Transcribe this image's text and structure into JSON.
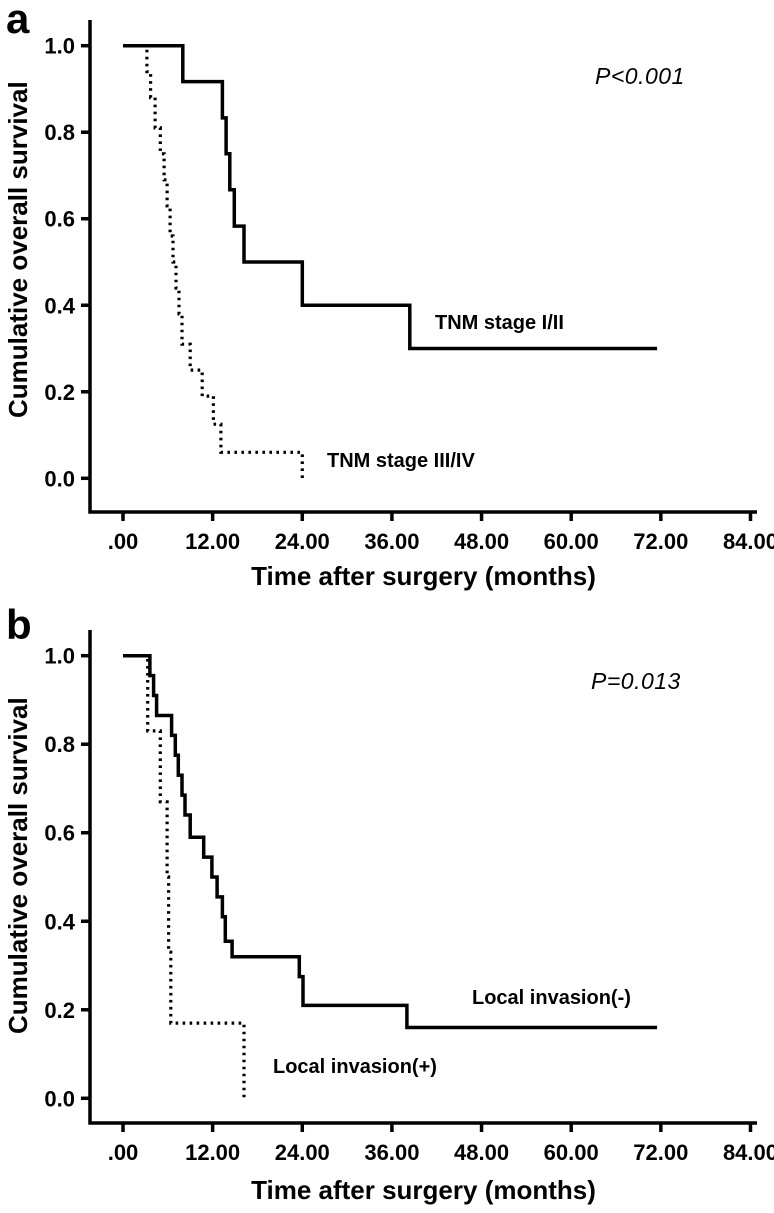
{
  "figure": {
    "background": "#ffffff",
    "ink": "#000000",
    "type": "kaplan-meier-survival-figure"
  },
  "chart_data": [
    {
      "type": "line",
      "subtype": "step-survival",
      "panel_label": "a",
      "xlabel": "Time after surgery (months)",
      "ylabel": "Cumulative overall survival",
      "xlim": [
        0,
        84
      ],
      "ylim": [
        0,
        1
      ],
      "grid": false,
      "legend_position": "inline-labels",
      "annotation": {
        "text": "P<0.001"
      },
      "x_ticks": {
        "values": [
          0,
          12,
          24,
          36,
          48,
          60,
          72,
          84
        ],
        "labels": [
          ".00",
          "12.00",
          "24.00",
          "36.00",
          "48.00",
          "60.00",
          "72.00",
          "84.00"
        ]
      },
      "y_ticks": {
        "values": [
          1.0,
          0.8,
          0.6,
          0.4,
          0.2,
          0.0
        ],
        "labels": [
          "1.0",
          "0.8",
          "0.6",
          "0.4",
          "0.2",
          "0.0"
        ]
      },
      "series": [
        {
          "name": "TNM stage I/II",
          "label": "TNM stage I/II",
          "style": "solid",
          "points": [
            [
              0,
              1.0
            ],
            [
              8,
              1.0
            ],
            [
              8,
              0.917
            ],
            [
              13.3,
              0.917
            ],
            [
              13.3,
              0.833
            ],
            [
              13.8,
              0.833
            ],
            [
              13.8,
              0.75
            ],
            [
              14.3,
              0.75
            ],
            [
              14.3,
              0.667
            ],
            [
              14.9,
              0.667
            ],
            [
              14.9,
              0.583
            ],
            [
              16.2,
              0.583
            ],
            [
              16.2,
              0.5
            ],
            [
              24,
              0.5
            ],
            [
              24,
              0.4
            ],
            [
              38.4,
              0.4
            ],
            [
              38.4,
              0.3
            ],
            [
              71.5,
              0.3
            ]
          ]
        },
        {
          "name": "TNM stage III/IV",
          "label": "TNM stage III/IV",
          "style": "dotted",
          "points": [
            [
              0,
              1.0
            ],
            [
              3.2,
              1.0
            ],
            [
              3.2,
              0.94
            ],
            [
              3.7,
              0.94
            ],
            [
              3.7,
              0.88
            ],
            [
              4.3,
              0.88
            ],
            [
              4.3,
              0.81
            ],
            [
              5.0,
              0.81
            ],
            [
              5.0,
              0.75
            ],
            [
              5.5,
              0.75
            ],
            [
              5.5,
              0.69
            ],
            [
              5.9,
              0.69
            ],
            [
              5.9,
              0.63
            ],
            [
              6.3,
              0.63
            ],
            [
              6.3,
              0.56
            ],
            [
              6.7,
              0.56
            ],
            [
              6.7,
              0.5
            ],
            [
              7.1,
              0.5
            ],
            [
              7.1,
              0.44
            ],
            [
              7.5,
              0.44
            ],
            [
              7.5,
              0.38
            ],
            [
              7.9,
              0.38
            ],
            [
              7.9,
              0.31
            ],
            [
              9.0,
              0.31
            ],
            [
              9.0,
              0.25
            ],
            [
              10.6,
              0.25
            ],
            [
              10.6,
              0.19
            ],
            [
              12.1,
              0.19
            ],
            [
              12.1,
              0.125
            ],
            [
              13.1,
              0.125
            ],
            [
              13.1,
              0.06
            ],
            [
              24,
              0.06
            ],
            [
              24,
              0.0
            ]
          ]
        }
      ]
    },
    {
      "type": "line",
      "subtype": "step-survival",
      "panel_label": "b",
      "xlabel": "Time after surgery (months)",
      "ylabel": "Cumulative overall survival",
      "xlim": [
        0,
        84
      ],
      "ylim": [
        0,
        1
      ],
      "grid": false,
      "legend_position": "inline-labels",
      "annotation": {
        "text": "P=0.013"
      },
      "x_ticks": {
        "values": [
          0,
          12,
          24,
          36,
          48,
          60,
          72,
          84
        ],
        "labels": [
          ".00",
          "12.00",
          "24.00",
          "36.00",
          "48.00",
          "60.00",
          "72.00",
          "84.00"
        ]
      },
      "y_ticks": {
        "values": [
          1.0,
          0.8,
          0.6,
          0.4,
          0.2,
          0.0
        ],
        "labels": [
          "1.0",
          "0.8",
          "0.6",
          "0.4",
          "0.2",
          "0.0"
        ]
      },
      "series": [
        {
          "name": "Local invasion(-)",
          "label": "Local invasion(-)",
          "style": "solid",
          "points": [
            [
              0,
              1.0
            ],
            [
              3.6,
              1.0
            ],
            [
              3.6,
              0.955
            ],
            [
              4.1,
              0.955
            ],
            [
              4.1,
              0.91
            ],
            [
              4.5,
              0.91
            ],
            [
              4.5,
              0.865
            ],
            [
              6.5,
              0.865
            ],
            [
              6.5,
              0.82
            ],
            [
              7.0,
              0.82
            ],
            [
              7.0,
              0.775
            ],
            [
              7.4,
              0.775
            ],
            [
              7.4,
              0.73
            ],
            [
              7.9,
              0.73
            ],
            [
              7.9,
              0.685
            ],
            [
              8.3,
              0.685
            ],
            [
              8.3,
              0.64
            ],
            [
              9.0,
              0.64
            ],
            [
              9.0,
              0.59
            ],
            [
              10.8,
              0.59
            ],
            [
              10.8,
              0.545
            ],
            [
              11.9,
              0.545
            ],
            [
              11.9,
              0.5
            ],
            [
              12.6,
              0.5
            ],
            [
              12.6,
              0.455
            ],
            [
              13.3,
              0.455
            ],
            [
              13.3,
              0.41
            ],
            [
              13.7,
              0.41
            ],
            [
              13.7,
              0.355
            ],
            [
              14.6,
              0.355
            ],
            [
              14.6,
              0.32
            ],
            [
              23.6,
              0.32
            ],
            [
              23.6,
              0.275
            ],
            [
              24.1,
              0.275
            ],
            [
              24.1,
              0.21
            ],
            [
              38.0,
              0.21
            ],
            [
              38.0,
              0.16
            ],
            [
              71.5,
              0.16
            ]
          ]
        },
        {
          "name": "Local invasion(+)",
          "label": "Local invasion(+)",
          "style": "dotted",
          "points": [
            [
              0,
              1.0
            ],
            [
              3.3,
              1.0
            ],
            [
              3.3,
              0.83
            ],
            [
              5.0,
              0.83
            ],
            [
              5.0,
              0.67
            ],
            [
              5.9,
              0.67
            ],
            [
              5.9,
              0.5
            ],
            [
              6.1,
              0.5
            ],
            [
              6.1,
              0.33
            ],
            [
              6.4,
              0.33
            ],
            [
              6.4,
              0.17
            ],
            [
              16.2,
              0.17
            ],
            [
              16.2,
              0.0
            ]
          ]
        }
      ]
    }
  ]
}
